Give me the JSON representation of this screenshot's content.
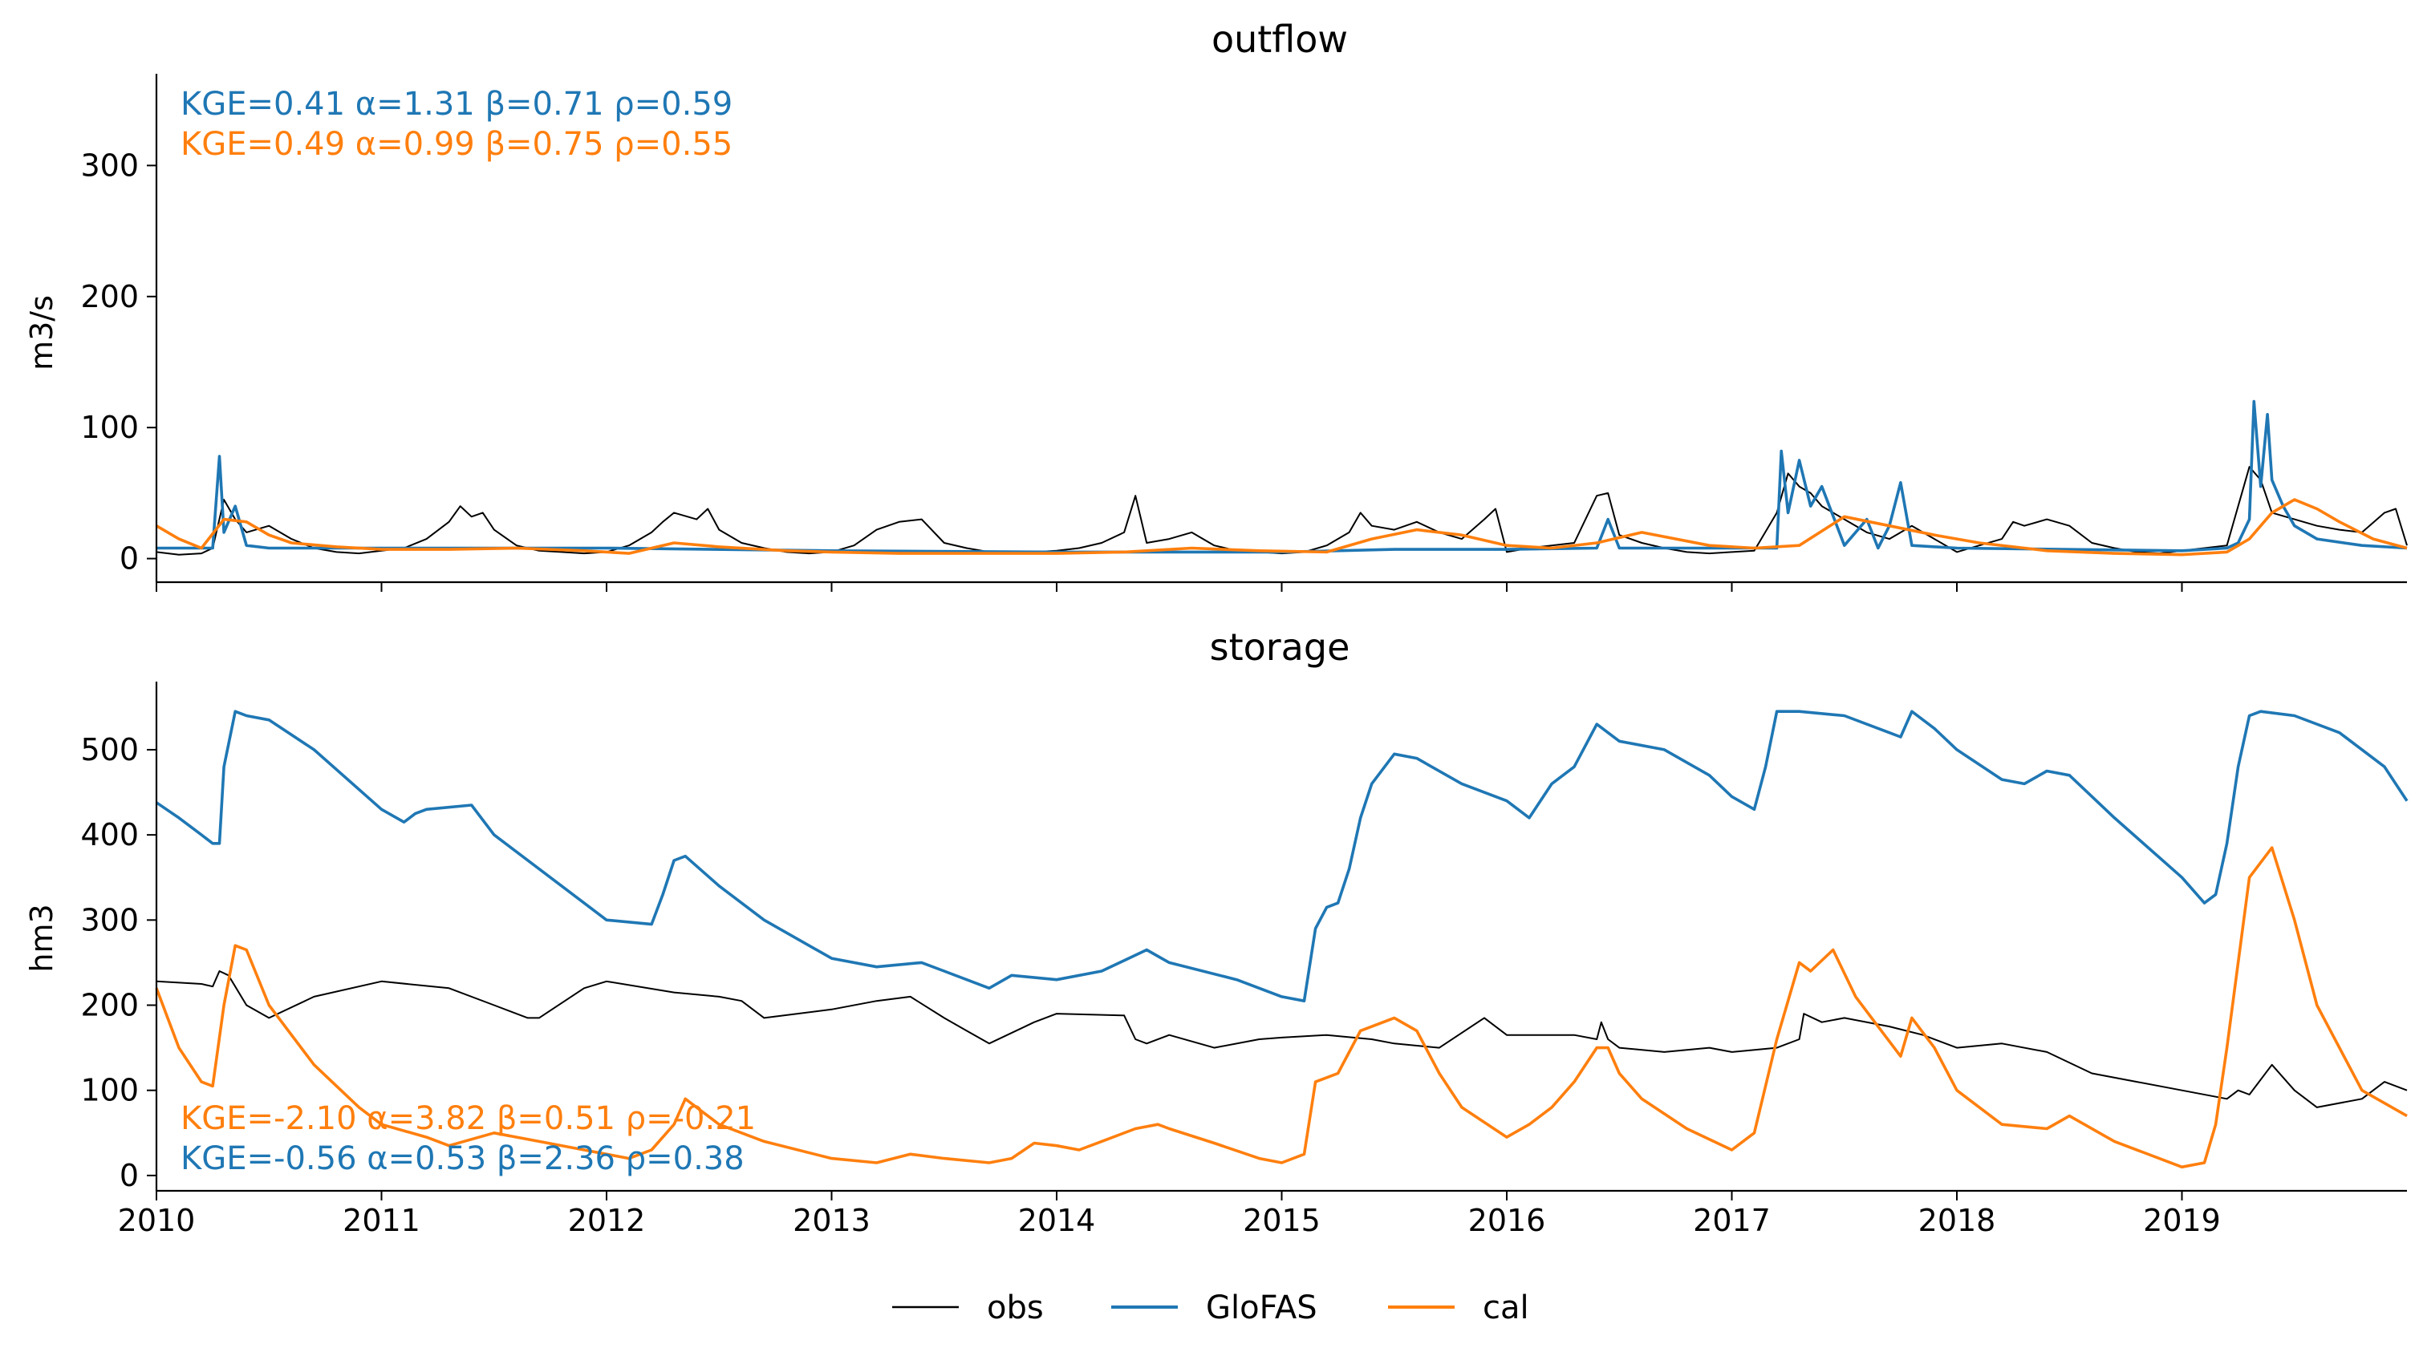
{
  "colors": {
    "obs": "#000000",
    "glofas": "#1f77b4",
    "cal": "#ff7f0e"
  },
  "chart_data": [
    {
      "type": "line",
      "title": "outflow",
      "ylabel": "m3/s",
      "xlabel": "",
      "xlim": [
        2010.0,
        2020.0
      ],
      "ylim": [
        -18,
        370
      ],
      "yticks": [
        0,
        100,
        200,
        300
      ],
      "xticks": [
        2010,
        2011,
        2012,
        2013,
        2014,
        2015,
        2016,
        2017,
        2018,
        2019
      ],
      "show_xtick_labels": false,
      "grid": false,
      "metrics": [
        {
          "series": "GloFAS",
          "text": "KGE=0.41  α=1.31  β=0.71  ρ=0.59"
        },
        {
          "series": "cal",
          "text": "KGE=0.49  α=0.99  β=0.75  ρ=0.55"
        }
      ],
      "metrics_position": "top-left",
      "series": [
        {
          "name": "obs",
          "x": [
            2010.0,
            2010.1,
            2010.2,
            2010.25,
            2010.3,
            2010.35,
            2010.4,
            2010.5,
            2010.6,
            2010.7,
            2010.8,
            2010.9,
            2011.0,
            2011.1,
            2011.2,
            2011.3,
            2011.35,
            2011.4,
            2011.45,
            2011.5,
            2011.6,
            2011.7,
            2011.8,
            2011.9,
            2012.0,
            2012.1,
            2012.2,
            2012.25,
            2012.3,
            2012.4,
            2012.45,
            2012.5,
            2012.6,
            2012.7,
            2012.8,
            2012.9,
            2013.0,
            2013.1,
            2013.2,
            2013.25,
            2013.3,
            2013.4,
            2013.5,
            2013.6,
            2013.7,
            2013.8,
            2013.9,
            2014.0,
            2014.1,
            2014.2,
            2014.3,
            2014.35,
            2014.4,
            2014.5,
            2014.6,
            2014.7,
            2014.8,
            2014.9,
            2015.0,
            2015.1,
            2015.2,
            2015.3,
            2015.35,
            2015.4,
            2015.5,
            2015.6,
            2015.7,
            2015.8,
            2015.9,
            2015.95,
            2016.0,
            2016.1,
            2016.2,
            2016.3,
            2016.4,
            2016.45,
            2016.5,
            2016.6,
            2016.7,
            2016.8,
            2016.9,
            2017.0,
            2017.1,
            2017.2,
            2017.25,
            2017.3,
            2017.35,
            2017.4,
            2017.5,
            2017.6,
            2017.7,
            2017.8,
            2017.9,
            2018.0,
            2018.1,
            2018.2,
            2018.25,
            2018.3,
            2018.4,
            2018.5,
            2018.6,
            2018.7,
            2018.8,
            2018.9,
            2019.0,
            2019.1,
            2019.2,
            2019.25,
            2019.3,
            2019.35,
            2019.4,
            2019.5,
            2019.6,
            2019.7,
            2019.8,
            2019.9,
            2019.95,
            2020.0
          ],
          "y": [
            5,
            3,
            4,
            8,
            45,
            30,
            20,
            25,
            15,
            8,
            5,
            4,
            6,
            8,
            15,
            28,
            40,
            32,
            35,
            22,
            10,
            6,
            5,
            4,
            5,
            10,
            20,
            28,
            35,
            30,
            38,
            22,
            12,
            8,
            5,
            4,
            5,
            10,
            22,
            25,
            28,
            30,
            12,
            8,
            5,
            4,
            5,
            6,
            8,
            12,
            20,
            48,
            12,
            15,
            20,
            10,
            6,
            5,
            4,
            5,
            10,
            20,
            35,
            25,
            22,
            28,
            20,
            15,
            30,
            38,
            5,
            8,
            10,
            12,
            48,
            50,
            18,
            12,
            8,
            5,
            4,
            5,
            6,
            35,
            65,
            55,
            50,
            40,
            30,
            20,
            15,
            25,
            15,
            5,
            10,
            15,
            28,
            25,
            30,
            25,
            12,
            8,
            5,
            4,
            6,
            8,
            10,
            40,
            70,
            60,
            35,
            30,
            25,
            22,
            20,
            35,
            38,
            10
          ]
        },
        {
          "name": "GloFAS",
          "x": [
            2010.0,
            2010.2,
            2010.25,
            2010.28,
            2010.3,
            2010.35,
            2010.4,
            2010.5,
            2011.0,
            2012.0,
            2013.0,
            2014.0,
            2015.0,
            2015.5,
            2016.0,
            2016.4,
            2016.45,
            2016.5,
            2017.0,
            2017.2,
            2017.22,
            2017.25,
            2017.3,
            2017.35,
            2017.4,
            2017.5,
            2017.6,
            2017.65,
            2017.7,
            2017.75,
            2017.8,
            2018.0,
            2019.0,
            2019.2,
            2019.25,
            2019.3,
            2019.32,
            2019.35,
            2019.38,
            2019.4,
            2019.45,
            2019.5,
            2019.6,
            2019.8,
            2020.0
          ],
          "y": [
            8,
            8,
            8,
            78,
            20,
            40,
            10,
            8,
            8,
            8,
            6,
            5,
            5,
            7,
            7,
            8,
            30,
            8,
            8,
            8,
            82,
            35,
            75,
            40,
            55,
            10,
            30,
            8,
            25,
            58,
            10,
            8,
            6,
            8,
            12,
            30,
            120,
            55,
            110,
            60,
            40,
            25,
            15,
            10,
            8
          ]
        },
        {
          "name": "cal",
          "x": [
            2010.0,
            2010.1,
            2010.2,
            2010.3,
            2010.4,
            2010.5,
            2010.6,
            2010.8,
            2011.0,
            2011.3,
            2011.6,
            2011.9,
            2012.1,
            2012.3,
            2012.5,
            2012.8,
            2013.0,
            2013.3,
            2013.6,
            2014.0,
            2014.3,
            2014.6,
            2014.9,
            2015.2,
            2015.4,
            2015.6,
            2015.8,
            2016.0,
            2016.2,
            2016.4,
            2016.6,
            2016.9,
            2017.1,
            2017.3,
            2017.5,
            2017.7,
            2017.9,
            2018.1,
            2018.4,
            2018.7,
            2019.0,
            2019.2,
            2019.3,
            2019.4,
            2019.5,
            2019.6,
            2019.7,
            2019.85,
            2020.0
          ],
          "y": [
            25,
            15,
            8,
            30,
            28,
            18,
            12,
            9,
            7,
            7,
            8,
            6,
            4,
            12,
            9,
            6,
            5,
            4,
            4,
            4,
            5,
            8,
            6,
            5,
            15,
            22,
            18,
            10,
            8,
            12,
            20,
            10,
            8,
            10,
            32,
            25,
            18,
            12,
            6,
            4,
            3,
            5,
            15,
            35,
            45,
            38,
            28,
            15,
            8
          ]
        }
      ]
    },
    {
      "type": "line",
      "title": "storage",
      "ylabel": "hm3",
      "xlabel": "",
      "xlim": [
        2010.0,
        2020.0
      ],
      "ylim": [
        -18,
        580
      ],
      "yticks": [
        0,
        100,
        200,
        300,
        400,
        500
      ],
      "xticks": [
        2010,
        2011,
        2012,
        2013,
        2014,
        2015,
        2016,
        2017,
        2018,
        2019
      ],
      "xtick_labels": [
        "2010",
        "2011",
        "2012",
        "2013",
        "2014",
        "2015",
        "2016",
        "2017",
        "2018",
        "2019"
      ],
      "show_xtick_labels": true,
      "grid": false,
      "metrics": [
        {
          "series": "cal",
          "text": "KGE=-2.10  α=3.82  β=0.51  ρ=-0.21"
        },
        {
          "series": "GloFAS",
          "text": "KGE=-0.56  α=0.53  β=2.36  ρ=0.38"
        }
      ],
      "metrics_position": "bottom-left",
      "series": [
        {
          "name": "obs",
          "x": [
            2010.0,
            2010.2,
            2010.25,
            2010.28,
            2010.32,
            2010.4,
            2010.5,
            2010.7,
            2011.0,
            2011.3,
            2011.5,
            2011.65,
            2011.7,
            2011.9,
            2012.0,
            2012.3,
            2012.5,
            2012.6,
            2012.7,
            2013.0,
            2013.2,
            2013.35,
            2013.5,
            2013.6,
            2013.7,
            2013.9,
            2014.0,
            2014.3,
            2014.35,
            2014.4,
            2014.5,
            2014.7,
            2014.9,
            2015.0,
            2015.2,
            2015.4,
            2015.5,
            2015.7,
            2015.9,
            2016.0,
            2016.3,
            2016.4,
            2016.42,
            2016.45,
            2016.5,
            2016.7,
            2016.9,
            2017.0,
            2017.2,
            2017.3,
            2017.32,
            2017.4,
            2017.5,
            2017.7,
            2017.85,
            2018.0,
            2018.2,
            2018.4,
            2018.6,
            2018.8,
            2019.0,
            2019.2,
            2019.25,
            2019.3,
            2019.4,
            2019.5,
            2019.6,
            2019.8,
            2019.9,
            2020.0
          ],
          "y": [
            228,
            225,
            222,
            240,
            235,
            200,
            185,
            210,
            228,
            220,
            200,
            185,
            185,
            220,
            228,
            215,
            210,
            205,
            185,
            195,
            205,
            210,
            185,
            170,
            155,
            180,
            190,
            188,
            160,
            155,
            165,
            150,
            160,
            162,
            165,
            160,
            155,
            150,
            185,
            165,
            165,
            160,
            180,
            160,
            150,
            145,
            150,
            145,
            150,
            160,
            190,
            180,
            185,
            175,
            165,
            150,
            155,
            145,
            120,
            110,
            100,
            90,
            100,
            95,
            130,
            100,
            80,
            90,
            110,
            100
          ]
        },
        {
          "name": "GloFAS",
          "x": [
            2010.0,
            2010.1,
            2010.2,
            2010.25,
            2010.28,
            2010.3,
            2010.35,
            2010.4,
            2010.5,
            2010.7,
            2011.0,
            2011.1,
            2011.15,
            2011.2,
            2011.4,
            2011.5,
            2011.7,
            2011.9,
            2012.0,
            2012.2,
            2012.25,
            2012.3,
            2012.35,
            2012.5,
            2012.7,
            2013.0,
            2013.2,
            2013.4,
            2013.5,
            2013.7,
            2013.8,
            2014.0,
            2014.2,
            2014.4,
            2014.5,
            2014.8,
            2015.0,
            2015.1,
            2015.15,
            2015.2,
            2015.25,
            2015.3,
            2015.35,
            2015.4,
            2015.5,
            2015.6,
            2015.8,
            2016.0,
            2016.1,
            2016.2,
            2016.3,
            2016.4,
            2016.5,
            2016.7,
            2016.9,
            2017.0,
            2017.1,
            2017.15,
            2017.2,
            2017.3,
            2017.5,
            2017.7,
            2017.75,
            2017.8,
            2017.9,
            2018.0,
            2018.2,
            2018.3,
            2018.4,
            2018.5,
            2018.7,
            2019.0,
            2019.1,
            2019.15,
            2019.2,
            2019.25,
            2019.3,
            2019.35,
            2019.5,
            2019.7,
            2019.9,
            2020.0
          ],
          "y": [
            438,
            420,
            400,
            390,
            390,
            480,
            545,
            540,
            535,
            500,
            430,
            415,
            425,
            430,
            435,
            400,
            360,
            320,
            300,
            295,
            330,
            370,
            375,
            340,
            300,
            255,
            245,
            250,
            240,
            220,
            235,
            230,
            240,
            265,
            250,
            230,
            210,
            205,
            290,
            315,
            320,
            360,
            420,
            460,
            495,
            490,
            460,
            440,
            420,
            460,
            480,
            530,
            510,
            500,
            470,
            445,
            430,
            480,
            545,
            545,
            540,
            520,
            515,
            545,
            525,
            500,
            465,
            460,
            475,
            470,
            420,
            350,
            320,
            330,
            390,
            480,
            540,
            545,
            540,
            520,
            480,
            440
          ]
        },
        {
          "name": "cal",
          "x": [
            2010.0,
            2010.1,
            2010.2,
            2010.25,
            2010.3,
            2010.35,
            2010.4,
            2010.5,
            2010.7,
            2010.9,
            2011.0,
            2011.2,
            2011.3,
            2011.5,
            2011.7,
            2011.9,
            2012.0,
            2012.1,
            2012.2,
            2012.3,
            2012.35,
            2012.4,
            2012.5,
            2012.7,
            2013.0,
            2013.2,
            2013.35,
            2013.5,
            2013.7,
            2013.8,
            2013.9,
            2014.0,
            2014.1,
            2014.2,
            2014.35,
            2014.45,
            2014.5,
            2014.7,
            2014.9,
            2015.0,
            2015.1,
            2015.15,
            2015.25,
            2015.35,
            2015.5,
            2015.6,
            2015.7,
            2015.8,
            2016.0,
            2016.1,
            2016.2,
            2016.3,
            2016.4,
            2016.45,
            2016.5,
            2016.6,
            2016.8,
            2017.0,
            2017.1,
            2017.2,
            2017.3,
            2017.35,
            2017.45,
            2017.55,
            2017.65,
            2017.75,
            2017.8,
            2017.9,
            2018.0,
            2018.2,
            2018.4,
            2018.5,
            2018.7,
            2019.0,
            2019.1,
            2019.15,
            2019.2,
            2019.3,
            2019.4,
            2019.5,
            2019.6,
            2019.8,
            2020.0
          ],
          "y": [
            220,
            150,
            110,
            105,
            200,
            270,
            265,
            200,
            130,
            80,
            60,
            45,
            35,
            50,
            40,
            30,
            25,
            20,
            30,
            60,
            90,
            80,
            60,
            40,
            20,
            15,
            25,
            20,
            15,
            20,
            38,
            35,
            30,
            40,
            55,
            60,
            55,
            38,
            20,
            15,
            25,
            110,
            120,
            170,
            185,
            170,
            120,
            80,
            45,
            60,
            80,
            110,
            150,
            150,
            120,
            90,
            55,
            30,
            50,
            160,
            250,
            240,
            265,
            210,
            175,
            140,
            185,
            150,
            100,
            60,
            55,
            70,
            40,
            10,
            15,
            60,
            150,
            350,
            385,
            300,
            200,
            100,
            70
          ]
        }
      ]
    }
  ],
  "legend": {
    "placement": "bottom-center",
    "entries": [
      {
        "key": "obs",
        "label": "obs"
      },
      {
        "key": "glofas",
        "label": "GloFAS"
      },
      {
        "key": "cal",
        "label": "cal"
      }
    ]
  }
}
